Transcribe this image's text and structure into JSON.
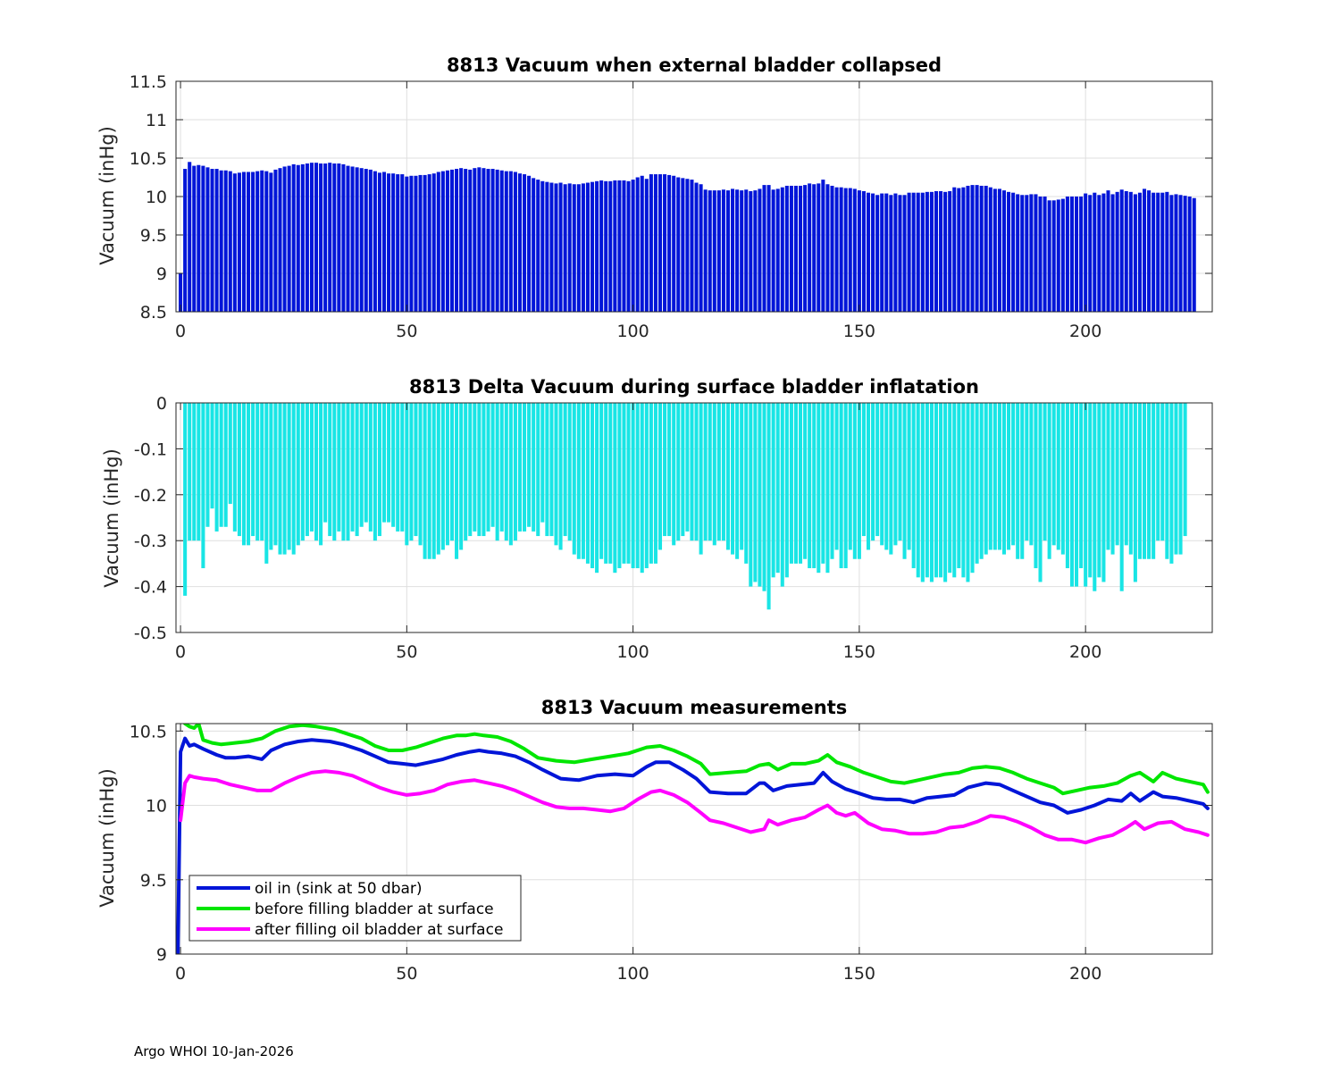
{
  "footer": "Argo WHOI 10-Jan-2026",
  "chart_data": [
    {
      "type": "bar",
      "title": "8813 Vacuum when external bladder collapsed",
      "xlabel": "",
      "ylabel": "Vacuum (inHg)",
      "xlim": [
        -1,
        228
      ],
      "ylim": [
        8.5,
        11.5
      ],
      "xticks": [
        0,
        50,
        100,
        150,
        200
      ],
      "yticks": [
        8.5,
        9,
        9.5,
        10,
        10.5,
        11,
        11.5
      ],
      "ytick_labels": [
        "8.5",
        "9",
        "9.5",
        "10",
        "10.5",
        "11",
        "11.5"
      ],
      "grid": true,
      "color": "#0015d8",
      "x_start": 0,
      "values": [
        9,
        10.36,
        10.45,
        10.4,
        10.41,
        10.4,
        10.38,
        10.36,
        10.36,
        10.34,
        10.34,
        10.33,
        10.3,
        10.31,
        10.32,
        10.32,
        10.32,
        10.33,
        10.34,
        10.33,
        10.31,
        10.35,
        10.37,
        10.39,
        10.4,
        10.42,
        10.41,
        10.42,
        10.43,
        10.44,
        10.44,
        10.43,
        10.43,
        10.44,
        10.43,
        10.43,
        10.42,
        10.4,
        10.39,
        10.38,
        10.37,
        10.36,
        10.35,
        10.33,
        10.31,
        10.32,
        10.3,
        10.3,
        10.29,
        10.29,
        10.26,
        10.27,
        10.27,
        10.28,
        10.28,
        10.29,
        10.3,
        10.32,
        10.33,
        10.34,
        10.35,
        10.36,
        10.37,
        10.36,
        10.35,
        10.37,
        10.38,
        10.37,
        10.36,
        10.36,
        10.35,
        10.34,
        10.33,
        10.33,
        10.32,
        10.3,
        10.29,
        10.27,
        10.24,
        10.22,
        10.2,
        10.19,
        10.18,
        10.17,
        10.18,
        10.16,
        10.17,
        10.16,
        10.16,
        10.17,
        10.18,
        10.19,
        10.2,
        10.21,
        10.2,
        10.2,
        10.21,
        10.21,
        10.21,
        10.2,
        10.22,
        10.25,
        10.27,
        10.23,
        10.29,
        10.29,
        10.29,
        10.29,
        10.28,
        10.27,
        10.25,
        10.24,
        10.23,
        10.22,
        10.18,
        10.16,
        10.09,
        10.08,
        10.08,
        10.08,
        10.09,
        10.08,
        10.1,
        10.09,
        10.08,
        10.09,
        10.07,
        10.08,
        10.1,
        10.15,
        10.15,
        10.09,
        10.1,
        10.12,
        10.14,
        10.14,
        10.14,
        10.14,
        10.15,
        10.17,
        10.16,
        10.17,
        10.22,
        10.16,
        10.14,
        10.12,
        10.12,
        10.11,
        10.11,
        10.1,
        10.08,
        10.07,
        10.05,
        10.04,
        10.02,
        10.04,
        10.04,
        10.02,
        10.04,
        10.02,
        10.02,
        10.05,
        10.05,
        10.05,
        10.05,
        10.06,
        10.06,
        10.07,
        10.07,
        10.06,
        10.07,
        10.12,
        10.11,
        10.12,
        10.14,
        10.15,
        10.15,
        10.14,
        10.14,
        10.12,
        10.1,
        10.1,
        10.08,
        10.06,
        10.05,
        10.03,
        10.02,
        10.02,
        10.03,
        10.03,
        10.0,
        10.0,
        9.95,
        9.95,
        9.96,
        9.97,
        10.0,
        10.0,
        10.0,
        10.0,
        10.04,
        10.02,
        10.05,
        10.02,
        10.04,
        10.08,
        10.03,
        10.06,
        10.09,
        10.07,
        10.06,
        10.03,
        10.05,
        10.1,
        10.08,
        10.05,
        10.05,
        10.05,
        10.06,
        10.02,
        10.03,
        10.02,
        10.01,
        10.0,
        9.98
      ]
    },
    {
      "type": "bar",
      "title": "8813 Delta Vacuum during surface bladder inflatation",
      "xlabel": "",
      "ylabel": "Vacuum (inHg)",
      "xlim": [
        -1,
        228
      ],
      "ylim": [
        -0.5,
        0
      ],
      "xticks": [
        0,
        50,
        100,
        150,
        200
      ],
      "yticks": [
        -0.5,
        -0.4,
        -0.3,
        -0.2,
        -0.1,
        0
      ],
      "ytick_labels": [
        "-0.5",
        "-0.4",
        "-0.3",
        "-0.2",
        "-0.1",
        "0"
      ],
      "grid": true,
      "color": "#19e5e5",
      "x_start": 0,
      "values": [
        0,
        -0.42,
        -0.3,
        -0.3,
        -0.3,
        -0.36,
        -0.27,
        -0.23,
        -0.28,
        -0.27,
        -0.27,
        -0.22,
        -0.28,
        -0.29,
        -0.31,
        -0.31,
        -0.29,
        -0.3,
        -0.3,
        -0.35,
        -0.32,
        -0.31,
        -0.33,
        -0.33,
        -0.32,
        -0.33,
        -0.31,
        -0.3,
        -0.29,
        -0.28,
        -0.3,
        -0.31,
        -0.26,
        -0.29,
        -0.3,
        -0.28,
        -0.3,
        -0.3,
        -0.28,
        -0.29,
        -0.27,
        -0.26,
        -0.28,
        -0.3,
        -0.29,
        -0.26,
        -0.26,
        -0.27,
        -0.28,
        -0.28,
        -0.31,
        -0.3,
        -0.29,
        -0.31,
        -0.34,
        -0.34,
        -0.34,
        -0.33,
        -0.32,
        -0.31,
        -0.3,
        -0.34,
        -0.32,
        -0.3,
        -0.29,
        -0.28,
        -0.29,
        -0.29,
        -0.28,
        -0.27,
        -0.3,
        -0.28,
        -0.3,
        -0.31,
        -0.3,
        -0.28,
        -0.28,
        -0.27,
        -0.28,
        -0.29,
        -0.26,
        -0.29,
        -0.29,
        -0.31,
        -0.32,
        -0.29,
        -0.3,
        -0.33,
        -0.34,
        -0.34,
        -0.35,
        -0.36,
        -0.37,
        -0.34,
        -0.35,
        -0.35,
        -0.37,
        -0.36,
        -0.35,
        -0.35,
        -0.36,
        -0.36,
        -0.37,
        -0.36,
        -0.35,
        -0.35,
        -0.32,
        -0.29,
        -0.29,
        -0.31,
        -0.3,
        -0.29,
        -0.28,
        -0.3,
        -0.3,
        -0.33,
        -0.3,
        -0.3,
        -0.31,
        -0.3,
        -0.3,
        -0.32,
        -0.33,
        -0.34,
        -0.32,
        -0.35,
        -0.4,
        -0.39,
        -0.4,
        -0.41,
        -0.45,
        -0.38,
        -0.37,
        -0.4,
        -0.38,
        -0.35,
        -0.35,
        -0.35,
        -0.34,
        -0.36,
        -0.36,
        -0.37,
        -0.35,
        -0.37,
        -0.34,
        -0.32,
        -0.36,
        -0.36,
        -0.32,
        -0.34,
        -0.34,
        -0.29,
        -0.32,
        -0.3,
        -0.29,
        -0.31,
        -0.32,
        -0.33,
        -0.31,
        -0.3,
        -0.34,
        -0.32,
        -0.36,
        -0.38,
        -0.39,
        -0.38,
        -0.39,
        -0.38,
        -0.38,
        -0.39,
        -0.37,
        -0.38,
        -0.36,
        -0.38,
        -0.39,
        -0.37,
        -0.35,
        -0.34,
        -0.33,
        -0.32,
        -0.32,
        -0.32,
        -0.33,
        -0.32,
        -0.31,
        -0.34,
        -0.34,
        -0.3,
        -0.31,
        -0.36,
        -0.39,
        -0.3,
        -0.34,
        -0.31,
        -0.32,
        -0.33,
        -0.36,
        -0.4,
        -0.4,
        -0.36,
        -0.4,
        -0.38,
        -0.41,
        -0.38,
        -0.39,
        -0.32,
        -0.33,
        -0.31,
        -0.41,
        -0.31,
        -0.33,
        -0.39,
        -0.34,
        -0.34,
        -0.34,
        -0.34,
        -0.3,
        -0.3,
        -0.34,
        -0.35,
        -0.33,
        -0.33,
        -0.29
      ]
    },
    {
      "type": "line",
      "title": "8813 Vacuum measurements",
      "xlabel": "",
      "ylabel": "Vacuum (inHg)",
      "xlim": [
        -1,
        228
      ],
      "ylim": [
        9,
        10.55
      ],
      "xticks": [
        0,
        50,
        100,
        150,
        200
      ],
      "yticks": [
        9,
        9.5,
        10,
        10.5
      ],
      "ytick_labels": [
        "9",
        "9.5",
        "10",
        "10.5"
      ],
      "grid": true,
      "legend_position": "bottom-left",
      "series": [
        {
          "name": "oil in (sink at 50 dbar)",
          "color": "#0015d8",
          "x": [
            -0.6,
            0,
            1,
            2,
            3,
            5,
            8,
            10,
            12,
            15,
            18,
            20,
            23,
            26,
            29,
            33,
            36,
            40,
            43,
            46,
            49,
            52,
            55,
            58,
            61,
            64,
            66,
            68,
            71,
            74,
            77,
            80,
            84,
            88,
            92,
            96,
            100,
            103,
            105,
            108,
            111,
            114,
            117,
            121,
            125,
            128,
            129,
            131,
            134,
            137,
            140,
            142,
            144,
            147,
            150,
            153,
            156,
            159,
            162,
            165,
            168,
            171,
            174,
            178,
            181,
            184,
            187,
            190,
            193,
            196,
            199,
            202,
            205,
            208,
            210,
            212,
            215,
            217,
            220,
            223,
            226,
            227
          ],
          "values": [
            8.95,
            10.36,
            10.45,
            10.4,
            10.41,
            10.38,
            10.34,
            10.32,
            10.32,
            10.33,
            10.31,
            10.37,
            10.41,
            10.43,
            10.44,
            10.43,
            10.41,
            10.37,
            10.33,
            10.29,
            10.28,
            10.27,
            10.29,
            10.31,
            10.34,
            10.36,
            10.37,
            10.36,
            10.35,
            10.33,
            10.29,
            10.24,
            10.18,
            10.17,
            10.2,
            10.21,
            10.2,
            10.26,
            10.29,
            10.29,
            10.24,
            10.18,
            10.09,
            10.08,
            10.08,
            10.15,
            10.15,
            10.1,
            10.13,
            10.14,
            10.15,
            10.22,
            10.16,
            10.11,
            10.08,
            10.05,
            10.04,
            10.04,
            10.02,
            10.05,
            10.06,
            10.07,
            10.12,
            10.15,
            10.14,
            10.1,
            10.06,
            10.02,
            10.0,
            9.95,
            9.97,
            10.0,
            10.04,
            10.03,
            10.08,
            10.03,
            10.09,
            10.06,
            10.05,
            10.03,
            10.01,
            9.98
          ]
        },
        {
          "name": "before filling bladder at surface",
          "color": "#00e600",
          "x": [
            1,
            2,
            3,
            4,
            5,
            7,
            9,
            12,
            15,
            18,
            21,
            24,
            27,
            30,
            34,
            37,
            40,
            43,
            46,
            49,
            52,
            55,
            58,
            61,
            63,
            65,
            67,
            70,
            73,
            76,
            79,
            83,
            87,
            91,
            95,
            99,
            103,
            106,
            109,
            112,
            115,
            117,
            121,
            125,
            128,
            130,
            132,
            135,
            138,
            141,
            143,
            145,
            148,
            151,
            154,
            157,
            160,
            163,
            166,
            169,
            172,
            175,
            178,
            181,
            184,
            187,
            190,
            193,
            195,
            198,
            201,
            204,
            207,
            210,
            212,
            215,
            217,
            220,
            223,
            226,
            227
          ],
          "values": [
            10.55,
            10.53,
            10.52,
            10.55,
            10.44,
            10.42,
            10.41,
            10.42,
            10.43,
            10.45,
            10.5,
            10.53,
            10.54,
            10.53,
            10.51,
            10.48,
            10.45,
            10.4,
            10.37,
            10.37,
            10.39,
            10.42,
            10.45,
            10.47,
            10.47,
            10.48,
            10.47,
            10.46,
            10.43,
            10.38,
            10.32,
            10.3,
            10.29,
            10.31,
            10.33,
            10.35,
            10.39,
            10.4,
            10.37,
            10.33,
            10.28,
            10.21,
            10.22,
            10.23,
            10.27,
            10.28,
            10.24,
            10.28,
            10.28,
            10.3,
            10.34,
            10.29,
            10.26,
            10.22,
            10.19,
            10.16,
            10.15,
            10.17,
            10.19,
            10.21,
            10.22,
            10.25,
            10.26,
            10.25,
            10.22,
            10.18,
            10.15,
            10.12,
            10.08,
            10.1,
            10.12,
            10.13,
            10.15,
            10.2,
            10.22,
            10.16,
            10.22,
            10.18,
            10.16,
            10.14,
            10.09
          ]
        },
        {
          "name": "after filling oil bladder at surface",
          "color": "#ff00ff",
          "x": [
            0,
            1,
            2,
            3,
            5,
            8,
            11,
            14,
            17,
            20,
            23,
            26,
            29,
            32,
            35,
            38,
            41,
            44,
            47,
            50,
            53,
            56,
            59,
            62,
            65,
            68,
            71,
            74,
            77,
            80,
            83,
            86,
            89,
            92,
            95,
            98,
            101,
            104,
            106,
            109,
            112,
            115,
            117,
            120,
            123,
            126,
            129,
            130,
            132,
            135,
            138,
            141,
            143,
            145,
            147,
            149,
            152,
            155,
            158,
            161,
            164,
            167,
            170,
            173,
            176,
            179,
            182,
            185,
            188,
            191,
            194,
            197,
            200,
            203,
            206,
            209,
            211,
            213,
            216,
            219,
            222,
            225,
            227
          ],
          "values": [
            9.9,
            10.15,
            10.2,
            10.19,
            10.18,
            10.17,
            10.14,
            10.12,
            10.1,
            10.1,
            10.15,
            10.19,
            10.22,
            10.23,
            10.22,
            10.2,
            10.16,
            10.12,
            10.09,
            10.07,
            10.08,
            10.1,
            10.14,
            10.16,
            10.17,
            10.15,
            10.13,
            10.1,
            10.06,
            10.02,
            9.99,
            9.98,
            9.98,
            9.97,
            9.96,
            9.98,
            10.04,
            10.09,
            10.1,
            10.07,
            10.02,
            9.95,
            9.9,
            9.88,
            9.85,
            9.82,
            9.84,
            9.9,
            9.87,
            9.9,
            9.92,
            9.97,
            10.0,
            9.95,
            9.93,
            9.95,
            9.88,
            9.84,
            9.83,
            9.81,
            9.81,
            9.82,
            9.85,
            9.86,
            9.89,
            9.93,
            9.92,
            9.89,
            9.85,
            9.8,
            9.77,
            9.77,
            9.75,
            9.78,
            9.8,
            9.85,
            9.89,
            9.84,
            9.88,
            9.89,
            9.84,
            9.82,
            9.8
          ]
        }
      ]
    }
  ]
}
